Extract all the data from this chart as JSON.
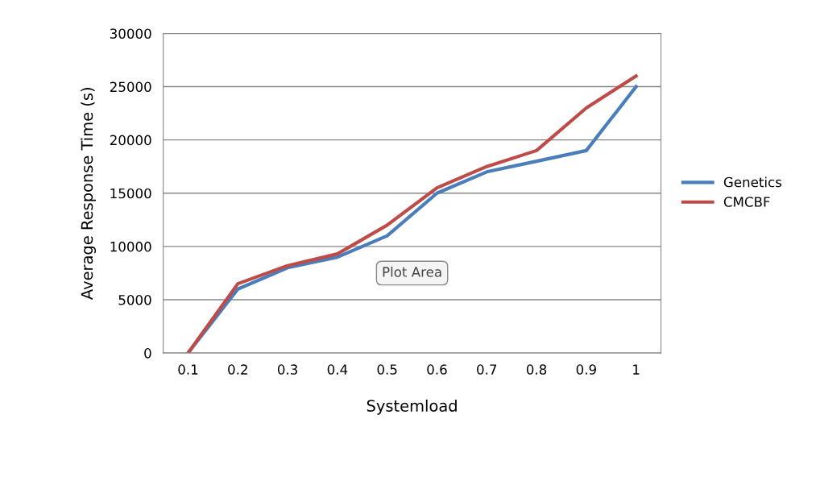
{
  "chart_data": {
    "type": "line",
    "xlabel": "Systemload",
    "ylabel": "Average Response Time (s)",
    "categories": [
      "0.1",
      "0.2",
      "0.3",
      "0.4",
      "0.5",
      "0.6",
      "0.7",
      "0.8",
      "0.9",
      "1"
    ],
    "series": [
      {
        "name": "Genetics",
        "color": "#4a7ebb",
        "values": [
          0,
          6000,
          8000,
          9000,
          11000,
          15000,
          17000,
          18000,
          19000,
          25000
        ]
      },
      {
        "name": "CMCBF",
        "color": "#be4b48",
        "values": [
          0,
          6500,
          8200,
          9300,
          12000,
          15500,
          17500,
          19000,
          23000,
          26000
        ]
      }
    ],
    "ylim": [
      0,
      30000
    ],
    "yticks": [
      0,
      5000,
      10000,
      15000,
      20000,
      25000,
      30000
    ],
    "grid": "y",
    "legend": "right",
    "marker": "none",
    "line_style": "solid",
    "annotations": [
      "Plot Area"
    ]
  }
}
